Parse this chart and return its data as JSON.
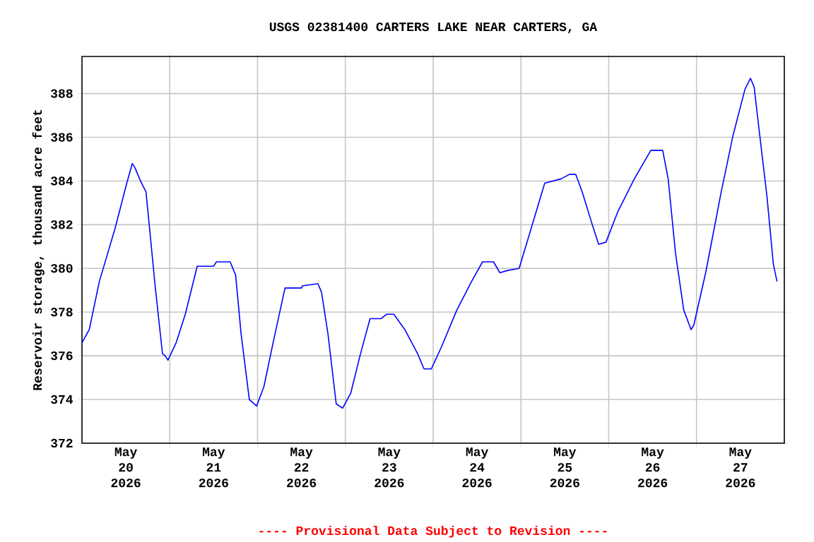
{
  "chart_data": {
    "type": "line",
    "title": "USGS 02381400 CARTERS LAKE NEAR CARTERS, GA",
    "ylabel": "Reservoir storage, thousand acre feet",
    "annotations": [
      "---- Provisional Data Subject to Revision ----"
    ],
    "xlim": [
      "2026-05-20T00:00",
      "2026-05-28T00:00"
    ],
    "ylim": [
      372,
      389.7
    ],
    "yticks": [
      372,
      374,
      376,
      378,
      380,
      382,
      384,
      386,
      388
    ],
    "xticks": [
      {
        "value": "2026-05-21T00:00",
        "label": null
      },
      {
        "value": "2026-05-22T00:00",
        "label": null
      },
      {
        "value": "2026-05-23T00:00",
        "label": null
      },
      {
        "value": "2026-05-24T00:00",
        "label": null
      },
      {
        "value": "2026-05-25T00:00",
        "label": null
      },
      {
        "value": "2026-05-26T00:00",
        "label": null
      },
      {
        "value": "2026-05-27T00:00",
        "label": null
      },
      {
        "value": "2026-05-20T12:00",
        "label": "May 20 2026"
      },
      {
        "value": "2026-05-21T12:00",
        "label": "May 21 2026"
      },
      {
        "value": "2026-05-22T12:00",
        "label": "May 22 2026"
      },
      {
        "value": "2026-05-23T12:00",
        "label": "May 23 2026"
      },
      {
        "value": "2026-05-24T12:00",
        "label": "May 24 2026"
      },
      {
        "value": "2026-05-25T12:00",
        "label": "May 25 2026"
      },
      {
        "value": "2026-05-26T12:00",
        "label": "May 26 2026"
      },
      {
        "value": "2026-05-27T12:00",
        "label": "May 27 2026"
      }
    ],
    "grid": true,
    "x": [
      "2026-05-20T00:00",
      "2026-05-20T02:00",
      "2026-05-20T04:45",
      "2026-05-20T09:00",
      "2026-05-20T12:15",
      "2026-05-20T13:45",
      "2026-05-20T14:30",
      "2026-05-20T16:00",
      "2026-05-20T17:30",
      "2026-05-20T18:30",
      "2026-05-20T20:00",
      "2026-05-20T22:00",
      "2026-05-20T22:45",
      "2026-05-20T23:30",
      "2026-05-21T01:45",
      "2026-05-21T04:15",
      "2026-05-21T07:30",
      "2026-05-21T12:00",
      "2026-05-21T12:45",
      "2026-05-21T16:30",
      "2026-05-21T18:00",
      "2026-05-21T19:30",
      "2026-05-21T21:45",
      "2026-05-21T23:45",
      "2026-05-22T01:45",
      "2026-05-22T04:15",
      "2026-05-22T07:30",
      "2026-05-22T12:00",
      "2026-05-22T12:15",
      "2026-05-22T16:30",
      "2026-05-22T17:30",
      "2026-05-22T19:15",
      "2026-05-22T21:30",
      "2026-05-22T23:15",
      "2026-05-23T01:30",
      "2026-05-23T04:00",
      "2026-05-23T06:45",
      "2026-05-23T09:45",
      "2026-05-23T11:15",
      "2026-05-23T13:15",
      "2026-05-23T16:15",
      "2026-05-23T19:45",
      "2026-05-23T21:30",
      "2026-05-23T23:30",
      "2026-05-24T02:15",
      "2026-05-24T06:30",
      "2026-05-24T10:30",
      "2026-05-24T13:30",
      "2026-05-24T16:30",
      "2026-05-24T18:15",
      "2026-05-24T20:15",
      "2026-05-24T23:30",
      "2026-05-25T02:45",
      "2026-05-25T06:30",
      "2026-05-25T11:00",
      "2026-05-25T13:15",
      "2026-05-25T15:00",
      "2026-05-25T16:45",
      "2026-05-25T19:30",
      "2026-05-25T21:15",
      "2026-05-25T23:15",
      "2026-05-26T02:30",
      "2026-05-26T07:00",
      "2026-05-26T11:30",
      "2026-05-26T14:45",
      "2026-05-26T16:15",
      "2026-05-26T18:15",
      "2026-05-26T20:30",
      "2026-05-26T22:30",
      "2026-05-26T23:15",
      "2026-05-27T02:30",
      "2026-05-27T06:45",
      "2026-05-27T10:00",
      "2026-05-27T13:15",
      "2026-05-27T14:45",
      "2026-05-27T15:45",
      "2026-05-27T17:00",
      "2026-05-27T19:15",
      "2026-05-27T21:00",
      "2026-05-27T22:00"
    ],
    "series": [
      {
        "color": "#0000ff",
        "values": [
          376.6,
          377.2,
          379.4,
          381.8,
          383.9,
          384.8,
          384.6,
          384.0,
          383.5,
          381.8,
          379.2,
          376.1,
          376.0,
          375.8,
          376.6,
          377.9,
          380.1,
          380.1,
          380.3,
          380.3,
          379.7,
          377.0,
          374.0,
          373.7,
          374.6,
          376.6,
          379.1,
          379.1,
          379.2,
          379.3,
          378.9,
          377.0,
          373.8,
          373.6,
          374.3,
          376.0,
          377.7,
          377.7,
          377.9,
          377.9,
          377.2,
          376.1,
          375.4,
          375.4,
          376.4,
          378.1,
          379.4,
          380.3,
          380.3,
          379.8,
          379.9,
          380.0,
          381.8,
          383.9,
          384.1,
          384.3,
          384.3,
          383.5,
          382.0,
          381.1,
          381.2,
          382.6,
          384.1,
          385.4,
          385.4,
          384.1,
          380.7,
          378.1,
          377.2,
          377.4,
          379.8,
          383.5,
          386.1,
          388.2,
          388.7,
          388.3,
          386.5,
          383.3,
          380.2,
          379.4
        ]
      }
    ]
  }
}
